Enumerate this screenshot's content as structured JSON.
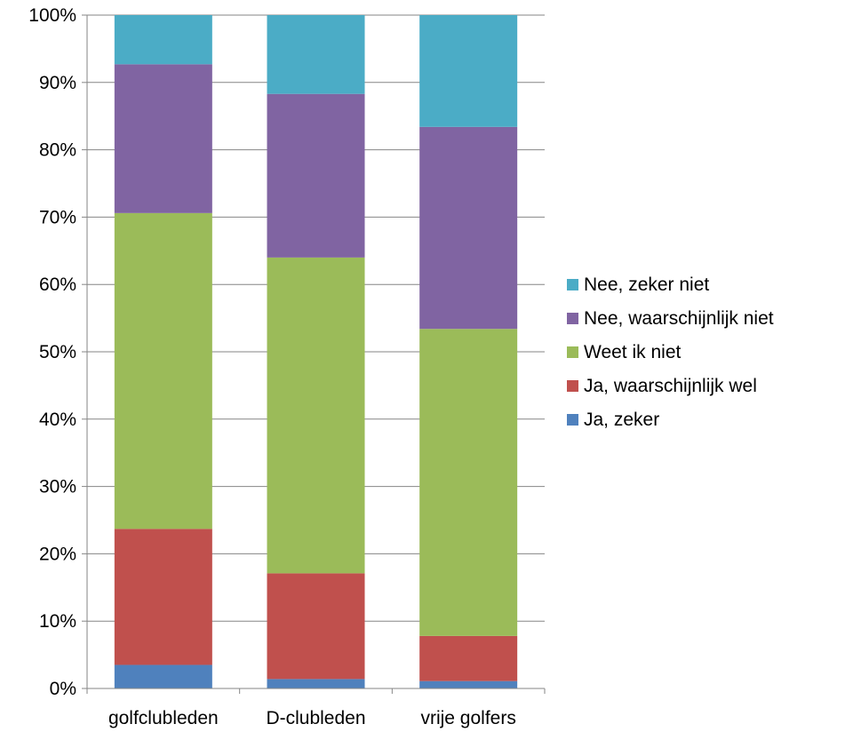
{
  "chart_data": {
    "type": "bar",
    "stacked": true,
    "percent": true,
    "categories": [
      "golfclubleden",
      "D-clubleden",
      "vrije golfers"
    ],
    "series": [
      {
        "name": "Ja, zeker",
        "color": "#4F81BD",
        "values": [
          3.5,
          1.4,
          1.1
        ]
      },
      {
        "name": "Ja, waarschijnlijk wel",
        "color": "#C0504D",
        "values": [
          20.2,
          15.7,
          6.7
        ]
      },
      {
        "name": "Weet ik niet",
        "color": "#9BBB59",
        "values": [
          46.9,
          46.9,
          45.6
        ]
      },
      {
        "name": "Nee, waarschijnlijk niet",
        "color": "#8064A2",
        "values": [
          22.1,
          24.3,
          30.0
        ]
      },
      {
        "name": "Nee, zeker niet",
        "color": "#4BACC6",
        "values": [
          7.3,
          11.7,
          16.6
        ]
      }
    ],
    "ylim": [
      0,
      100
    ],
    "yticks": [
      "0%",
      "10%",
      "20%",
      "30%",
      "40%",
      "50%",
      "60%",
      "70%",
      "80%",
      "90%",
      "100%"
    ],
    "title": "",
    "xlabel": "",
    "ylabel": "",
    "grid": true,
    "legend_position": "right"
  }
}
